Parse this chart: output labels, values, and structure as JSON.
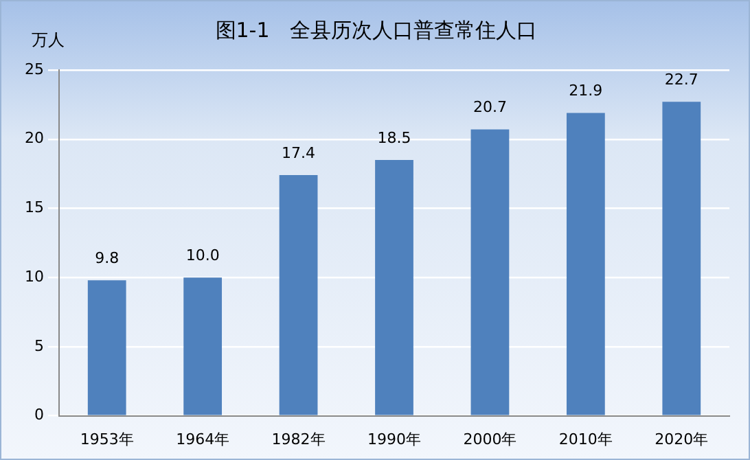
{
  "chart_data": {
    "type": "bar",
    "title": "图1-1　全县历次人口普查常住人口",
    "ylabel": "万人",
    "categories": [
      "1953年",
      "1964年",
      "1982年",
      "1990年",
      "2000年",
      "2010年",
      "2020年"
    ],
    "values": [
      9.8,
      10.0,
      17.4,
      18.5,
      20.7,
      21.9,
      22.7
    ],
    "value_labels": [
      "9.8",
      "10.0",
      "17.4",
      "18.5",
      "20.7",
      "21.9",
      "22.7"
    ],
    "color": "#4f81bd",
    "ylim": [
      0,
      25
    ],
    "yticks": [
      0,
      5,
      10,
      15,
      20,
      25
    ],
    "grid": "y",
    "legend": false
  }
}
